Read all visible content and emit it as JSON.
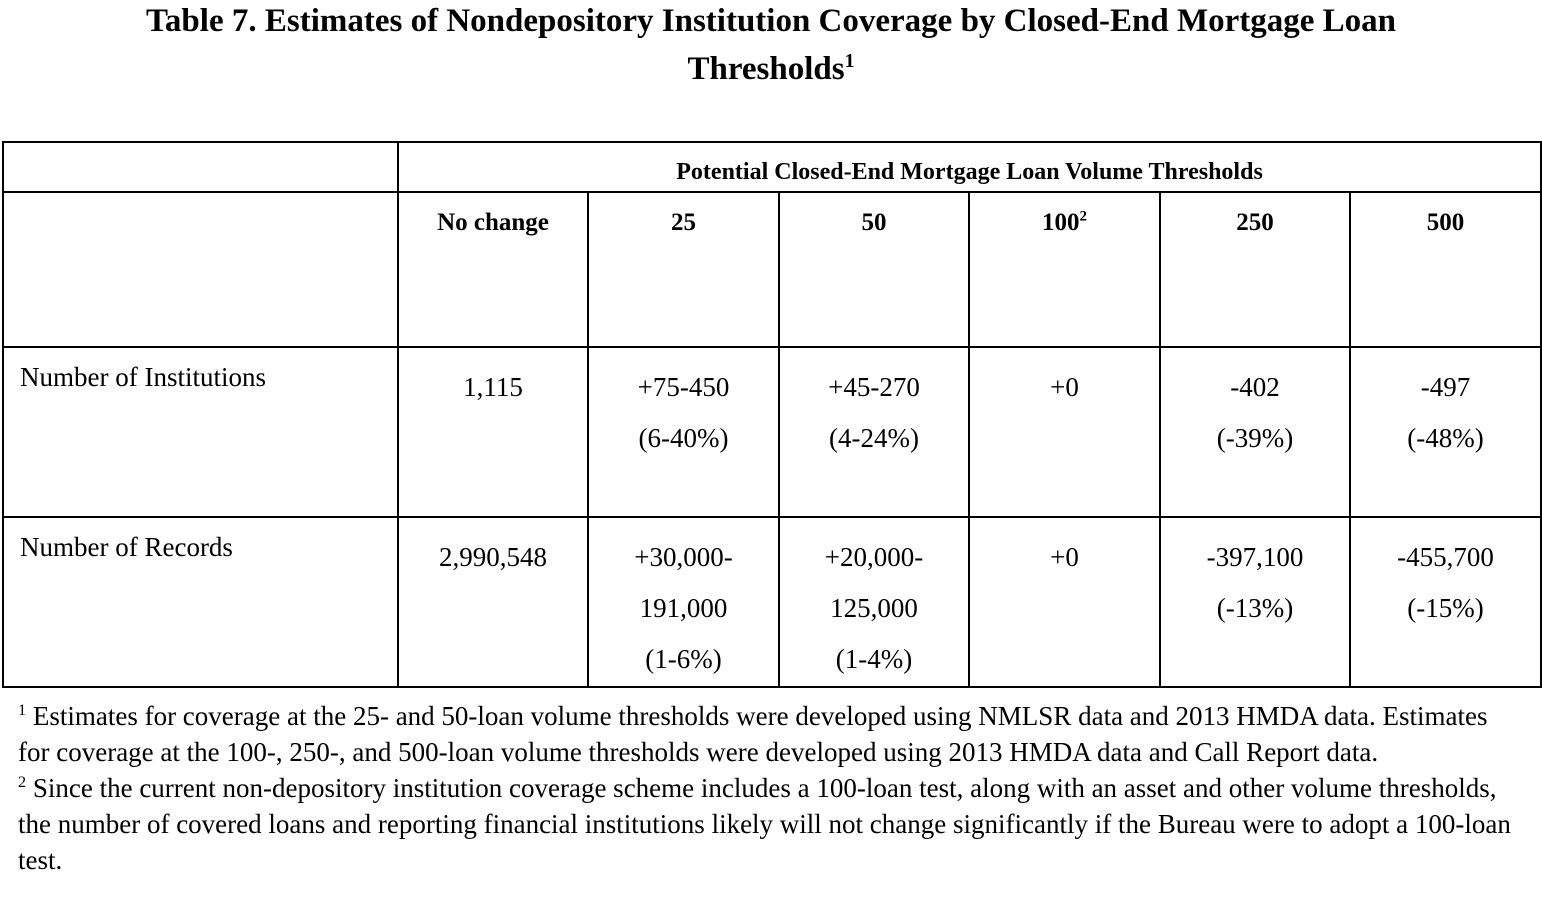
{
  "title": {
    "line1": "Table 7.  Estimates of Nondepository Institution Coverage by Closed-End Mortgage Loan",
    "line2": "Thresholds",
    "line2_sup": "1"
  },
  "table": {
    "group_header": "Potential Closed-End Mortgage Loan Volume Thresholds",
    "columns": [
      {
        "label": "No change",
        "sup": ""
      },
      {
        "label": "25",
        "sup": ""
      },
      {
        "label": "50",
        "sup": ""
      },
      {
        "label": "100",
        "sup": "2"
      },
      {
        "label": "250",
        "sup": ""
      },
      {
        "label": "500",
        "sup": ""
      }
    ],
    "rows": [
      {
        "label": "Number of Institutions",
        "cells": [
          [
            "1,115"
          ],
          [
            "+75-450",
            "(6-40%)"
          ],
          [
            "+45-270",
            "(4-24%)"
          ],
          [
            "+0"
          ],
          [
            "-402",
            "(-39%)"
          ],
          [
            "-497",
            "(-48%)"
          ]
        ]
      },
      {
        "label": "Number of Records",
        "cells": [
          [
            "2,990,548"
          ],
          [
            "+30,000-",
            "191,000",
            "(1-6%)"
          ],
          [
            "+20,000-",
            "125,000",
            "(1-4%)"
          ],
          [
            "+0"
          ],
          [
            "-397,100",
            "(-13%)"
          ],
          [
            "-455,700",
            "(-15%)"
          ]
        ]
      }
    ]
  },
  "footnotes": [
    {
      "marker": "1",
      "text": " Estimates for coverage at the 25- and 50-loan volume thresholds were developed using NMLSR data and 2013 HMDA data.  Estimates for coverage at the 100-, 250-, and 500-loan volume thresholds were developed using 2013 HMDA data and Call Report data."
    },
    {
      "marker": "2",
      "text": " Since the current non-depository institution coverage scheme includes a 100-loan test, along with an asset and other volume thresholds, the number of covered loans and reporting financial institutions likely will not change significantly if the Bureau were to adopt a 100-loan test."
    }
  ]
}
